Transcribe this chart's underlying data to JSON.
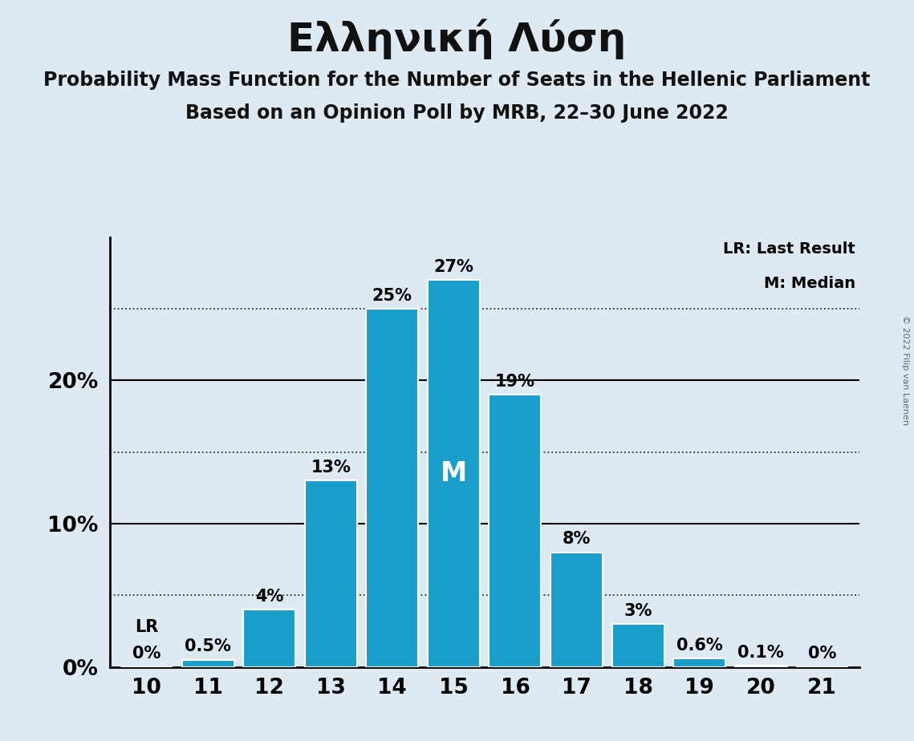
{
  "title": "Ελληνική Λύση",
  "subtitle1": "Probability Mass Function for the Number of Seats in the Hellenic Parliament",
  "subtitle2": "Based on an Opinion Poll by MRB, 22–30 June 2022",
  "categories": [
    10,
    11,
    12,
    13,
    14,
    15,
    16,
    17,
    18,
    19,
    20,
    21
  ],
  "values": [
    0.0,
    0.5,
    4.0,
    13.0,
    25.0,
    27.0,
    19.0,
    8.0,
    3.0,
    0.6,
    0.1,
    0.0
  ],
  "bar_color": "#1a9fcc",
  "background_color": "#ddeaf3",
  "bar_edge_color": "#ffffff",
  "median_bar": 15,
  "lr_bar": 10,
  "yticks": [
    0,
    10,
    20
  ],
  "dotted_lines": [
    5,
    15,
    25
  ],
  "annotation_color": "#000000",
  "median_label_color": "#ffffff",
  "copyright": "© 2022 Filip van Laenen",
  "bar_label_fontsize": 15,
  "tick_label_fontsize": 19,
  "legend_fontsize": 14,
  "title_fontsize": 36,
  "subtitle_fontsize": 17
}
